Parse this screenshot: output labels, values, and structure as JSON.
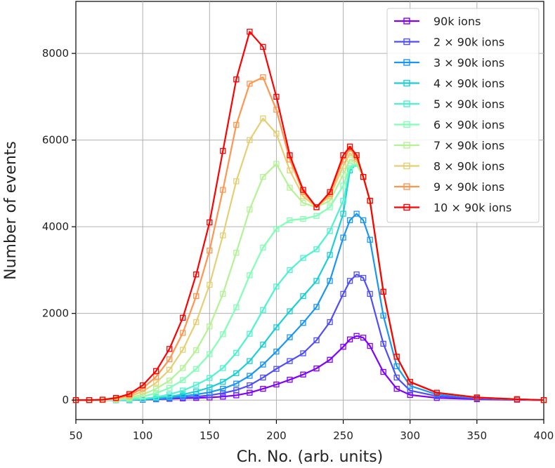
{
  "chart_data": {
    "type": "line",
    "xlabel": "Ch. No. (arb. units)",
    "ylabel": "Number of events",
    "xlim": [
      50,
      400
    ],
    "ylim": [
      -450,
      9200
    ],
    "xticks": [
      50,
      100,
      150,
      200,
      250,
      300,
      350,
      400
    ],
    "yticks": [
      0,
      2000,
      4000,
      6000,
      8000
    ],
    "xtick_labels": [
      "50",
      "100",
      "150",
      "200",
      "250",
      "300",
      "350",
      "400"
    ],
    "ytick_labels": [
      "0",
      "2000",
      "4000",
      "6000",
      "8000"
    ],
    "grid": true,
    "legend_position": "top-right",
    "marker": "open-square",
    "x": [
      50,
      60,
      70,
      80,
      90,
      100,
      110,
      120,
      130,
      140,
      150,
      160,
      170,
      180,
      190,
      200,
      210,
      220,
      230,
      240,
      250,
      255,
      260,
      265,
      270,
      280,
      290,
      300,
      320,
      350,
      380,
      400
    ],
    "series": [
      {
        "name": "90k ions",
        "color": "#8000ff",
        "values": [
          0,
          0,
          0,
          0,
          0,
          10,
          20,
          30,
          40,
          50,
          60,
          80,
          110,
          170,
          260,
          360,
          470,
          590,
          730,
          930,
          1230,
          1400,
          1480,
          1440,
          1250,
          650,
          260,
          120,
          50,
          20,
          5,
          0
        ]
      },
      {
        "name": "2 × 90k ions",
        "color": "#4e4dfc",
        "values": [
          0,
          0,
          0,
          0,
          0,
          10,
          20,
          40,
          60,
          80,
          110,
          160,
          230,
          340,
          520,
          720,
          900,
          1080,
          1380,
          1800,
          2450,
          2750,
          2900,
          2820,
          2450,
          1300,
          520,
          220,
          90,
          35,
          10,
          0
        ]
      },
      {
        "name": "3 × 90k ions",
        "color": "#1996f3",
        "values": [
          0,
          0,
          0,
          0,
          0,
          15,
          30,
          55,
          90,
          130,
          180,
          260,
          380,
          560,
          820,
          1120,
          1450,
          1780,
          2150,
          2750,
          3750,
          4150,
          4300,
          4150,
          3700,
          1950,
          780,
          330,
          130,
          50,
          15,
          0
        ]
      },
      {
        "name": "4 × 90k ions",
        "color": "#1bcfd4",
        "values": [
          0,
          0,
          0,
          0,
          5,
          20,
          45,
          80,
          130,
          200,
          290,
          420,
          620,
          900,
          1280,
          1680,
          2050,
          2400,
          2750,
          3350,
          4300,
          5300,
          5450,
          5150,
          4600,
          2500,
          1000,
          420,
          170,
          60,
          20,
          0
        ]
      },
      {
        "name": "5 × 90k ions",
        "color": "#4df3ce",
        "values": [
          0,
          0,
          0,
          5,
          10,
          30,
          70,
          130,
          220,
          350,
          510,
          740,
          1090,
          1530,
          2080,
          2620,
          3000,
          3280,
          3480,
          3900,
          4600,
          5350,
          5450,
          5150,
          4600,
          2500,
          1000,
          420,
          170,
          60,
          20,
          0
        ]
      },
      {
        "name": "6 × 90k ions",
        "color": "#81ffb4",
        "values": [
          0,
          0,
          0,
          10,
          30,
          80,
          160,
          280,
          460,
          720,
          1060,
          1520,
          2140,
          2880,
          3520,
          3950,
          4150,
          4180,
          4250,
          4450,
          4950,
          5400,
          5450,
          5150,
          4600,
          2500,
          1000,
          420,
          170,
          60,
          20,
          0
        ]
      },
      {
        "name": "7 × 90k ions",
        "color": "#b3f396",
        "values": [
          0,
          0,
          0,
          15,
          50,
          130,
          260,
          450,
          740,
          1150,
          1700,
          2450,
          3400,
          4400,
          5150,
          5450,
          4900,
          4550,
          4450,
          4600,
          5200,
          5550,
          5500,
          5150,
          4600,
          2500,
          1000,
          420,
          170,
          60,
          20,
          0
        ]
      },
      {
        "name": "8 × 90k ions",
        "color": "#e5cf74",
        "values": [
          0,
          0,
          5,
          30,
          80,
          200,
          400,
          700,
          1160,
          1800,
          2660,
          3800,
          5050,
          6000,
          6500,
          6150,
          5300,
          4700,
          4450,
          4700,
          5400,
          5700,
          5550,
          5150,
          4600,
          2500,
          1000,
          420,
          170,
          60,
          20,
          0
        ]
      },
      {
        "name": "9 × 90k ions",
        "color": "#ff964f",
        "values": [
          0,
          0,
          10,
          40,
          110,
          270,
          540,
          940,
          1550,
          2400,
          3450,
          4850,
          6350,
          7300,
          7450,
          6700,
          5550,
          4800,
          4450,
          4750,
          5550,
          5800,
          5600,
          5150,
          4600,
          2500,
          1000,
          420,
          170,
          60,
          20,
          0
        ]
      },
      {
        "name": "10 × 90k ions",
        "color": "#ff0000",
        "values": [
          0,
          0,
          10,
          50,
          140,
          340,
          670,
          1180,
          1900,
          2900,
          4100,
          5750,
          7400,
          8500,
          8150,
          7000,
          5650,
          4850,
          4450,
          4800,
          5650,
          5850,
          5650,
          5150,
          4600,
          2500,
          1000,
          420,
          170,
          60,
          20,
          0
        ]
      }
    ]
  }
}
